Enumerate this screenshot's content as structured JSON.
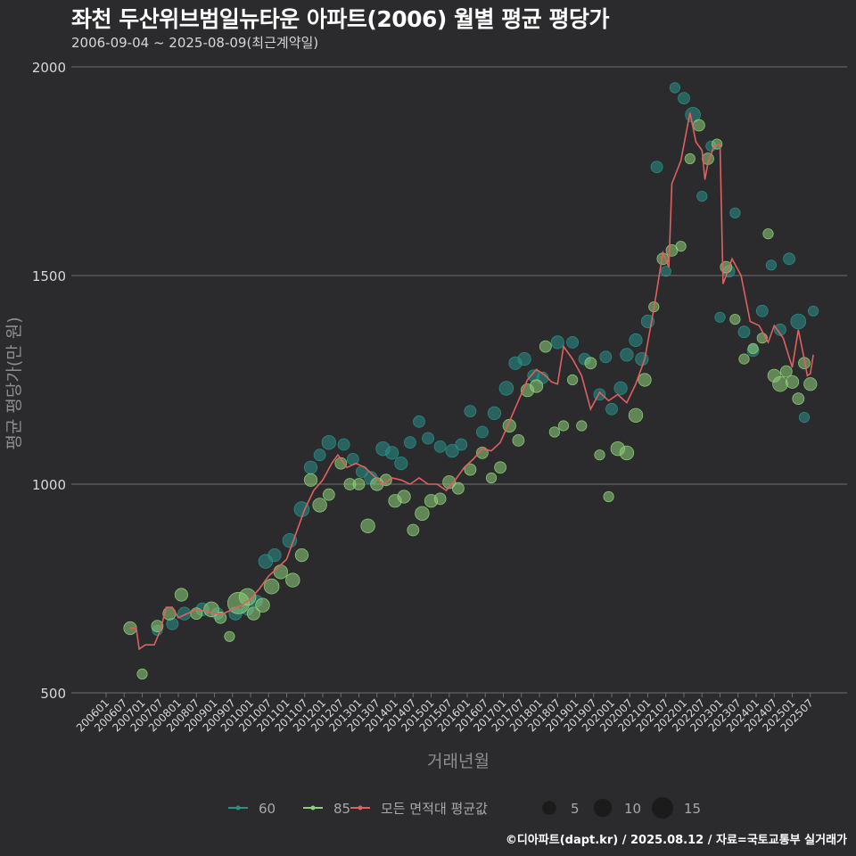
{
  "header": {
    "title": "좌천 두산위브범일뉴타운 아파트(2006) 월별 평균 평당가",
    "subtitle": "2006-09-04 ~ 2025-08-09(최근계약일)"
  },
  "caption": "©디아파트(dapt.kr) / 2025.08.12 / 자료=국토교통부 실거래가",
  "colors": {
    "background": "#2b2b2d",
    "grid": "#6f6f6f",
    "series60": "#2a8f88",
    "series85": "#8ed07a",
    "average_line": "#e06060"
  },
  "chart_data": {
    "type": "scatter",
    "title": "좌천 두산위브범일뉴타운 아파트(2006) 월별 평균 평당가",
    "xlabel": "거래년월",
    "ylabel": "평균 평당가(만 원)",
    "ylim": [
      500,
      2000
    ],
    "yticks": [
      500,
      1000,
      1500,
      2000
    ],
    "x_range": [
      "2006-01",
      "2025-09"
    ],
    "xticks": [
      "200601",
      "200607",
      "200701",
      "200707",
      "200801",
      "200807",
      "200901",
      "200907",
      "201001",
      "201007",
      "201101",
      "201107",
      "201201",
      "201207",
      "201301",
      "201307",
      "201401",
      "201407",
      "201501",
      "201507",
      "201601",
      "201607",
      "201701",
      "201707",
      "201801",
      "201807",
      "201901",
      "201907",
      "202001",
      "202007",
      "202101",
      "202107",
      "202201",
      "202207",
      "202301",
      "202307",
      "202401",
      "202407",
      "202501",
      "202507"
    ],
    "legend": {
      "series": [
        {
          "name": "60",
          "color": "#2a8f88"
        },
        {
          "name": "85",
          "color": "#8ed07a"
        },
        {
          "name": "모든 면적대 평균값",
          "color": "#e06060"
        }
      ],
      "size_title": "",
      "sizes": [
        5,
        10,
        15
      ],
      "size_labels": [
        "5",
        "10",
        "15"
      ]
    },
    "average_line": {
      "name": "모든 면적대 평균값",
      "points": [
        [
          "2006-09",
          655
        ],
        [
          "2006-11",
          655
        ],
        [
          "2006-12",
          605
        ],
        [
          "2007-02",
          615
        ],
        [
          "2007-05",
          615
        ],
        [
          "2007-07",
          650
        ],
        [
          "2007-09",
          705
        ],
        [
          "2007-11",
          705
        ],
        [
          "2008-01",
          680
        ],
        [
          "2008-04",
          690
        ],
        [
          "2008-07",
          700
        ],
        [
          "2008-10",
          695
        ],
        [
          "2009-01",
          690
        ],
        [
          "2009-04",
          690
        ],
        [
          "2009-07",
          700
        ],
        [
          "2009-10",
          710
        ],
        [
          "2010-01",
          725
        ],
        [
          "2010-04",
          750
        ],
        [
          "2010-07",
          780
        ],
        [
          "2010-10",
          800
        ],
        [
          "2011-01",
          820
        ],
        [
          "2011-04",
          880
        ],
        [
          "2011-07",
          940
        ],
        [
          "2011-10",
          985
        ],
        [
          "2012-01",
          1010
        ],
        [
          "2012-04",
          1050
        ],
        [
          "2012-06",
          1070
        ],
        [
          "2012-09",
          1040
        ],
        [
          "2012-12",
          1050
        ],
        [
          "2013-03",
          1040
        ],
        [
          "2013-06",
          1020
        ],
        [
          "2013-09",
          1000
        ],
        [
          "2013-12",
          1015
        ],
        [
          "2014-03",
          1010
        ],
        [
          "2014-06",
          1000
        ],
        [
          "2014-09",
          1015
        ],
        [
          "2014-12",
          1000
        ],
        [
          "2015-03",
          1000
        ],
        [
          "2015-06",
          985
        ],
        [
          "2015-09",
          1010
        ],
        [
          "2015-12",
          1040
        ],
        [
          "2016-03",
          1060
        ],
        [
          "2016-06",
          1085
        ],
        [
          "2016-09",
          1080
        ],
        [
          "2016-12",
          1100
        ],
        [
          "2017-03",
          1150
        ],
        [
          "2017-06",
          1200
        ],
        [
          "2017-09",
          1250
        ],
        [
          "2017-12",
          1275
        ],
        [
          "2018-03",
          1260
        ],
        [
          "2018-05",
          1245
        ],
        [
          "2018-07",
          1240
        ],
        [
          "2018-09",
          1330
        ],
        [
          "2018-12",
          1300
        ],
        [
          "2019-03",
          1260
        ],
        [
          "2019-06",
          1180
        ],
        [
          "2019-09",
          1220
        ],
        [
          "2019-12",
          1200
        ],
        [
          "2020-03",
          1215
        ],
        [
          "2020-06",
          1195
        ],
        [
          "2020-09",
          1240
        ],
        [
          "2020-12",
          1300
        ],
        [
          "2021-03",
          1420
        ],
        [
          "2021-06",
          1555
        ],
        [
          "2021-08",
          1520
        ],
        [
          "2021-09",
          1720
        ],
        [
          "2021-12",
          1775
        ],
        [
          "2022-03",
          1890
        ],
        [
          "2022-05",
          1820
        ],
        [
          "2022-07",
          1800
        ],
        [
          "2022-08",
          1730
        ],
        [
          "2022-09",
          1770
        ],
        [
          "2022-11",
          1810
        ],
        [
          "2023-01",
          1815
        ],
        [
          "2023-02",
          1480
        ],
        [
          "2023-05",
          1540
        ],
        [
          "2023-08",
          1500
        ],
        [
          "2023-11",
          1390
        ],
        [
          "2024-02",
          1380
        ],
        [
          "2024-05",
          1340
        ],
        [
          "2024-07",
          1380
        ],
        [
          "2024-10",
          1350
        ],
        [
          "2025-01",
          1280
        ],
        [
          "2025-03",
          1370
        ],
        [
          "2025-05",
          1300
        ],
        [
          "2025-06",
          1260
        ],
        [
          "2025-07",
          1265
        ],
        [
          "2025-08",
          1310
        ]
      ]
    },
    "series": [
      {
        "name": "60",
        "points": [
          [
            "2007-06",
            650,
            2
          ],
          [
            "2007-11",
            665,
            3
          ],
          [
            "2008-03",
            690,
            4
          ],
          [
            "2008-09",
            700,
            4
          ],
          [
            "2009-02",
            690,
            3
          ],
          [
            "2009-08",
            690,
            4
          ],
          [
            "2009-12",
            700,
            3
          ],
          [
            "2010-03",
            720,
            3
          ],
          [
            "2010-06",
            815,
            5
          ],
          [
            "2010-09",
            830,
            4
          ],
          [
            "2011-02",
            865,
            5
          ],
          [
            "2011-06",
            940,
            6
          ],
          [
            "2011-09",
            1040,
            4
          ],
          [
            "2011-12",
            1070,
            3
          ],
          [
            "2012-03",
            1100,
            5
          ],
          [
            "2012-08",
            1095,
            3
          ],
          [
            "2012-11",
            1060,
            3
          ],
          [
            "2013-02",
            1030,
            3
          ],
          [
            "2013-05",
            1015,
            4
          ],
          [
            "2013-09",
            1085,
            5
          ],
          [
            "2013-12",
            1075,
            4
          ],
          [
            "2014-03",
            1050,
            4
          ],
          [
            "2014-06",
            1100,
            3
          ],
          [
            "2014-09",
            1150,
            3
          ],
          [
            "2014-12",
            1110,
            3
          ],
          [
            "2015-04",
            1090,
            3
          ],
          [
            "2015-08",
            1080,
            4
          ],
          [
            "2015-11",
            1095,
            3
          ],
          [
            "2016-02",
            1175,
            3
          ],
          [
            "2016-06",
            1125,
            3
          ],
          [
            "2016-10",
            1170,
            4
          ],
          [
            "2017-02",
            1230,
            5
          ],
          [
            "2017-05",
            1290,
            4
          ],
          [
            "2017-08",
            1300,
            4
          ],
          [
            "2017-11",
            1260,
            3
          ],
          [
            "2018-02",
            1255,
            3
          ],
          [
            "2018-07",
            1340,
            4
          ],
          [
            "2018-12",
            1340,
            3
          ],
          [
            "2019-04",
            1300,
            3
          ],
          [
            "2019-09",
            1215,
            3
          ],
          [
            "2019-11",
            1305,
            3
          ],
          [
            "2020-01",
            1180,
            3
          ],
          [
            "2020-04",
            1230,
            4
          ],
          [
            "2020-06",
            1310,
            4
          ],
          [
            "2020-09",
            1345,
            4
          ],
          [
            "2020-11",
            1300,
            4
          ],
          [
            "2021-01",
            1390,
            4
          ],
          [
            "2021-04",
            1760,
            3
          ],
          [
            "2021-07",
            1510,
            2
          ],
          [
            "2021-10",
            1950,
            2
          ],
          [
            "2022-01",
            1925,
            3
          ],
          [
            "2022-04",
            1885,
            6
          ],
          [
            "2022-07",
            1690,
            2
          ],
          [
            "2022-10",
            1810,
            2
          ],
          [
            "2023-01",
            1400,
            2
          ],
          [
            "2023-04",
            1510,
            3
          ],
          [
            "2023-06",
            1650,
            2
          ],
          [
            "2023-09",
            1365,
            3
          ],
          [
            "2023-12",
            1320,
            3
          ],
          [
            "2024-03",
            1415,
            3
          ],
          [
            "2024-06",
            1525,
            2
          ],
          [
            "2024-09",
            1370,
            3
          ],
          [
            "2024-12",
            1540,
            3
          ],
          [
            "2025-03",
            1390,
            6
          ],
          [
            "2025-05",
            1160,
            2
          ],
          [
            "2025-08",
            1415,
            2
          ]
        ]
      },
      {
        "name": "85",
        "points": [
          [
            "2006-09",
            655,
            4
          ],
          [
            "2007-01",
            545,
            2
          ],
          [
            "2007-06",
            660,
            3
          ],
          [
            "2007-10",
            690,
            4
          ],
          [
            "2008-02",
            735,
            4
          ],
          [
            "2008-07",
            690,
            3
          ],
          [
            "2008-12",
            700,
            6
          ],
          [
            "2009-03",
            680,
            3
          ],
          [
            "2009-06",
            635,
            2
          ],
          [
            "2009-09",
            715,
            15
          ],
          [
            "2009-12",
            730,
            8
          ],
          [
            "2010-02",
            690,
            4
          ],
          [
            "2010-05",
            710,
            5
          ],
          [
            "2010-08",
            755,
            6
          ],
          [
            "2010-11",
            790,
            5
          ],
          [
            "2011-03",
            770,
            5
          ],
          [
            "2011-06",
            830,
            4
          ],
          [
            "2011-09",
            1010,
            4
          ],
          [
            "2011-12",
            950,
            5
          ],
          [
            "2012-03",
            975,
            3
          ],
          [
            "2012-07",
            1050,
            3
          ],
          [
            "2012-10",
            1000,
            3
          ],
          [
            "2013-01",
            1000,
            3
          ],
          [
            "2013-04",
            900,
            5
          ],
          [
            "2013-07",
            1000,
            4
          ],
          [
            "2013-10",
            1010,
            3
          ],
          [
            "2014-01",
            960,
            4
          ],
          [
            "2014-04",
            970,
            4
          ],
          [
            "2014-07",
            890,
            3
          ],
          [
            "2014-10",
            930,
            5
          ],
          [
            "2015-01",
            960,
            4
          ],
          [
            "2015-04",
            965,
            3
          ],
          [
            "2015-07",
            1005,
            4
          ],
          [
            "2015-10",
            990,
            3
          ],
          [
            "2016-02",
            1035,
            3
          ],
          [
            "2016-06",
            1075,
            3
          ],
          [
            "2016-09",
            1015,
            2
          ],
          [
            "2016-12",
            1040,
            3
          ],
          [
            "2017-03",
            1140,
            4
          ],
          [
            "2017-06",
            1105,
            3
          ],
          [
            "2017-09",
            1225,
            4
          ],
          [
            "2017-12",
            1235,
            4
          ],
          [
            "2018-03",
            1330,
            3
          ],
          [
            "2018-06",
            1125,
            2
          ],
          [
            "2018-09",
            1140,
            2
          ],
          [
            "2018-12",
            1250,
            2
          ],
          [
            "2019-03",
            1140,
            2
          ],
          [
            "2019-06",
            1290,
            3
          ],
          [
            "2019-09",
            1070,
            2
          ],
          [
            "2019-12",
            970,
            2
          ],
          [
            "2020-03",
            1085,
            5
          ],
          [
            "2020-06",
            1075,
            5
          ],
          [
            "2020-09",
            1165,
            5
          ],
          [
            "2020-12",
            1250,
            4
          ],
          [
            "2021-03",
            1425,
            2
          ],
          [
            "2021-06",
            1540,
            3
          ],
          [
            "2021-09",
            1560,
            3
          ],
          [
            "2021-12",
            1570,
            2
          ],
          [
            "2022-03",
            1780,
            2
          ],
          [
            "2022-06",
            1860,
            3
          ],
          [
            "2022-09",
            1780,
            3
          ],
          [
            "2022-12",
            1815,
            2
          ],
          [
            "2023-03",
            1520,
            3
          ],
          [
            "2023-06",
            1395,
            2
          ],
          [
            "2023-09",
            1300,
            2
          ],
          [
            "2023-12",
            1325,
            2
          ],
          [
            "2024-03",
            1350,
            2
          ],
          [
            "2024-05",
            1600,
            2
          ],
          [
            "2024-07",
            1260,
            4
          ],
          [
            "2024-09",
            1240,
            6
          ],
          [
            "2024-11",
            1270,
            3
          ],
          [
            "2025-01",
            1245,
            4
          ],
          [
            "2025-03",
            1205,
            3
          ],
          [
            "2025-05",
            1290,
            3
          ],
          [
            "2025-07",
            1240,
            4
          ]
        ]
      }
    ]
  }
}
